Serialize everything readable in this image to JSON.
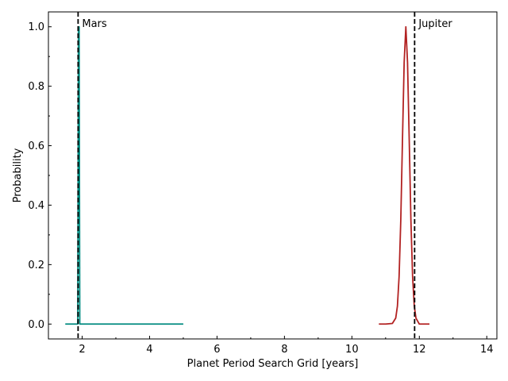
{
  "chart_data": {
    "type": "line",
    "title": "",
    "xlabel": "Planet Period Search Grid [years]",
    "ylabel": "Probability",
    "xlim": [
      1.0,
      14.3
    ],
    "ylim": [
      -0.05,
      1.05
    ],
    "x_ticks": [
      2,
      4,
      6,
      8,
      10,
      12,
      14
    ],
    "x_tick_labels": [
      "2",
      "4",
      "6",
      "8",
      "10",
      "12",
      "14"
    ],
    "y_ticks": [
      0.0,
      0.2,
      0.4,
      0.6,
      0.8,
      1.0
    ],
    "y_tick_labels": [
      "0.0",
      "0.2",
      "0.4",
      "0.6",
      "0.8",
      "1.0"
    ],
    "grid": false,
    "series": [
      {
        "color": "#008b80",
        "x": [
          1.5,
          1.85,
          1.87,
          1.89,
          1.9,
          1.91,
          1.93,
          1.95,
          5.0
        ],
        "y": [
          0.0,
          0.0,
          0.0,
          1.0,
          1.0,
          1.0,
          0.0,
          0.0,
          0.0
        ]
      },
      {
        "color": "#b22222",
        "x": [
          10.8,
          11.0,
          11.2,
          11.3,
          11.35,
          11.4,
          11.45,
          11.5,
          11.55,
          11.6,
          11.65,
          11.7,
          11.75,
          11.8,
          11.85,
          11.9,
          12.0,
          12.3
        ],
        "y": [
          0.0,
          0.0,
          0.002,
          0.02,
          0.06,
          0.16,
          0.35,
          0.62,
          0.88,
          1.0,
          0.88,
          0.62,
          0.35,
          0.16,
          0.06,
          0.02,
          0.0,
          0.0
        ]
      }
    ],
    "vlines": [
      {
        "x": 1.88,
        "label": "Mars",
        "color": "#000000",
        "style": "dashed"
      },
      {
        "x": 11.86,
        "label": "Jupiter",
        "color": "#000000",
        "style": "dashed"
      }
    ]
  }
}
